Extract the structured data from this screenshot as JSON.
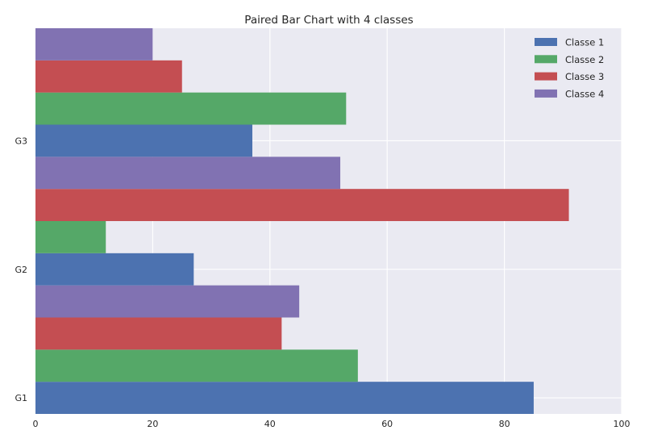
{
  "chart_data": {
    "type": "bar",
    "orientation": "horizontal",
    "title": "Paired Bar Chart with 4 classes",
    "xlabel": "",
    "ylabel": "",
    "categories": [
      "G1",
      "G2",
      "G3"
    ],
    "xlim": [
      0,
      100
    ],
    "xticks": [
      0,
      20,
      40,
      60,
      80,
      100
    ],
    "grid": true,
    "legend_position": "top-right",
    "series": [
      {
        "name": "Classe 1",
        "color": "#4c72b0",
        "values": [
          85,
          27,
          37
        ]
      },
      {
        "name": "Classe 2",
        "color": "#55a868",
        "values": [
          55,
          12,
          53
        ]
      },
      {
        "name": "Classe 3",
        "color": "#c44e52",
        "values": [
          42,
          91,
          25
        ]
      },
      {
        "name": "Classe 4",
        "color": "#8172b2",
        "values": [
          45,
          52,
          20
        ]
      }
    ]
  },
  "colors": {
    "plot_background": "#eaeaf2",
    "grid": "#ffffff"
  }
}
